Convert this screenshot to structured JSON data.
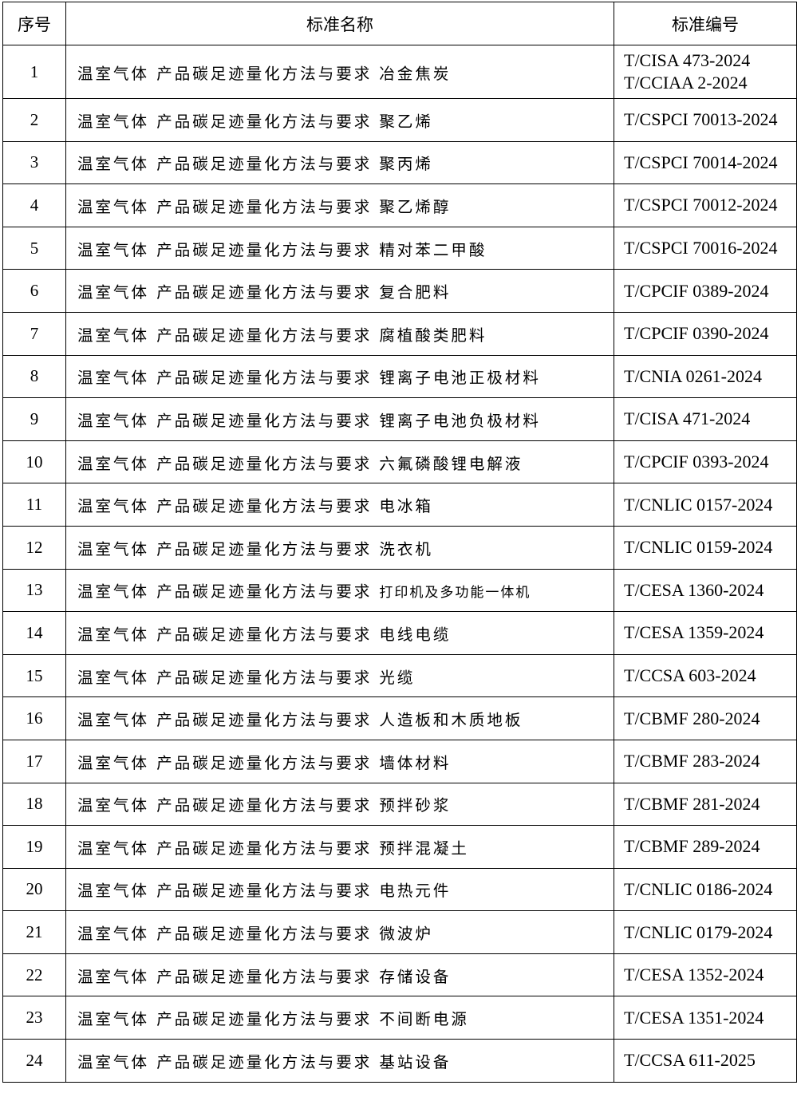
{
  "headers": [
    "序号",
    "标准名称",
    "标准编号"
  ],
  "prefix": "温室气体 产品碳足迹量化方法与要求",
  "rows": [
    {
      "no": "1",
      "product": "冶金焦炭",
      "codes": [
        "T/CISA 473-2024",
        "T/CCIAA 2-2024"
      ]
    },
    {
      "no": "2",
      "product": "聚乙烯",
      "codes": [
        "T/CSPCI 70013-2024"
      ]
    },
    {
      "no": "3",
      "product": "聚丙烯",
      "codes": [
        "T/CSPCI 70014-2024"
      ]
    },
    {
      "no": "4",
      "product": "聚乙烯醇",
      "codes": [
        "T/CSPCI 70012-2024"
      ]
    },
    {
      "no": "5",
      "product": "精对苯二甲酸",
      "codes": [
        "T/CSPCI 70016-2024"
      ]
    },
    {
      "no": "6",
      "product": "复合肥料",
      "codes": [
        "T/CPCIF 0389-2024"
      ]
    },
    {
      "no": "7",
      "product": "腐植酸类肥料",
      "codes": [
        "T/CPCIF 0390-2024"
      ]
    },
    {
      "no": "8",
      "product": "锂离子电池正极材料",
      "codes": [
        "T/CNIA 0261-2024"
      ]
    },
    {
      "no": "9",
      "product": "锂离子电池负极材料",
      "codes": [
        "T/CISA 471-2024"
      ]
    },
    {
      "no": "10",
      "product": "六氟磷酸锂电解液",
      "codes": [
        "T/CPCIF 0393-2024"
      ]
    },
    {
      "no": "11",
      "product": "电冰箱",
      "codes": [
        "T/CNLIC 0157-2024"
      ]
    },
    {
      "no": "12",
      "product": "洗衣机",
      "codes": [
        "T/CNLIC 0159-2024"
      ]
    },
    {
      "no": "13",
      "product": "打印机及多功能一体机",
      "codes": [
        "T/CESA 1360-2024"
      ],
      "small": true
    },
    {
      "no": "14",
      "product": "电线电缆",
      "codes": [
        "T/CESA 1359-2024"
      ]
    },
    {
      "no": "15",
      "product": "光缆",
      "codes": [
        "T/CCSA 603-2024"
      ]
    },
    {
      "no": "16",
      "product": "人造板和木质地板",
      "codes": [
        "T/CBMF 280-2024"
      ]
    },
    {
      "no": "17",
      "product": "墙体材料",
      "codes": [
        "T/CBMF 283-2024"
      ]
    },
    {
      "no": "18",
      "product": "预拌砂浆",
      "codes": [
        "T/CBMF 281-2024"
      ]
    },
    {
      "no": "19",
      "product": "预拌混凝土",
      "codes": [
        "T/CBMF 289-2024"
      ]
    },
    {
      "no": "20",
      "product": "电热元件",
      "codes": [
        "T/CNLIC 0186-2024"
      ]
    },
    {
      "no": "21",
      "product": "微波炉",
      "codes": [
        "T/CNLIC 0179-2024"
      ]
    },
    {
      "no": "22",
      "product": "存储设备",
      "codes": [
        "T/CESA 1352-2024"
      ]
    },
    {
      "no": "23",
      "product": "不间断电源",
      "codes": [
        "T/CESA 1351-2024"
      ]
    },
    {
      "no": "24",
      "product": "基站设备",
      "codes": [
        "T/CCSA 611-2025"
      ]
    }
  ]
}
